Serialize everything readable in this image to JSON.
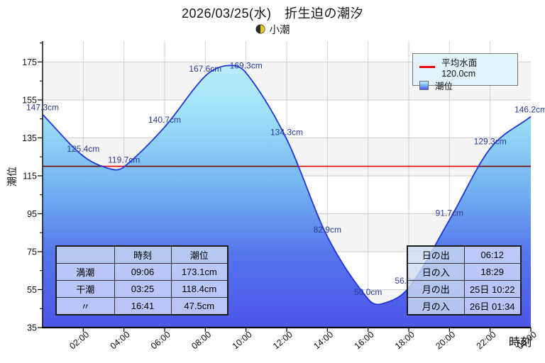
{
  "title": "2026/03/25(水)　折生迫の潮汐",
  "moon_phase": "小潮",
  "legend": {
    "mean_label": "平均水面 120.0cm",
    "series_label": "潮位"
  },
  "axes": {
    "y_label": "潮位",
    "x_label": "時刻"
  },
  "tide_table": {
    "headers": [
      "",
      "時刻",
      "潮位"
    ],
    "rows": [
      [
        "満潮",
        "09:06",
        "173.1cm"
      ],
      [
        "干潮",
        "03:25",
        "118.4cm"
      ],
      [
        "〃",
        "16:41",
        "47.5cm"
      ]
    ]
  },
  "sun_moon_table": {
    "rows": [
      [
        "日の出",
        "06:12"
      ],
      [
        "日の入",
        "18:29"
      ],
      [
        "月の出",
        "25日 10:22"
      ],
      [
        "月の入",
        "26日 01:34"
      ]
    ]
  },
  "chart_data": {
    "type": "area",
    "title": "折生迫の潮汐 2026/03/25",
    "xlabel": "時刻",
    "ylabel": "潮位",
    "ylim": [
      35,
      186
    ],
    "y_major_ticks": [
      35,
      55,
      75,
      95,
      115,
      135,
      155,
      175
    ],
    "y_minor_ticks": [
      45,
      65,
      85,
      105,
      125,
      145,
      165,
      185
    ],
    "x_ticks": [
      {
        "hour": 2,
        "label": "02:00"
      },
      {
        "hour": 4,
        "label": "04:00"
      },
      {
        "hour": 6,
        "label": "06:00"
      },
      {
        "hour": 8,
        "label": "08:00"
      },
      {
        "hour": 10,
        "label": "10:00"
      },
      {
        "hour": 12,
        "label": "12:00"
      },
      {
        "hour": 14,
        "label": "14:00"
      },
      {
        "hour": 16,
        "label": "16:00"
      },
      {
        "hour": 18,
        "label": "18:00"
      },
      {
        "hour": 20,
        "label": "20:00"
      },
      {
        "hour": 22,
        "label": "22:00"
      },
      {
        "hour": 24,
        "label": "00:00"
      }
    ],
    "mean_water_cm": 120.0,
    "series": [
      {
        "name": "潮位",
        "points": [
          {
            "hour": 0.0,
            "cm": 147.3,
            "label": "147.3cm"
          },
          {
            "hour": 2.0,
            "cm": 125.4,
            "label": "125.4cm"
          },
          {
            "hour": 3.417,
            "cm": 118.4
          },
          {
            "hour": 4.0,
            "cm": 119.7,
            "label": "119.7cm"
          },
          {
            "hour": 6.0,
            "cm": 140.7,
            "label": "140.7cm"
          },
          {
            "hour": 8.0,
            "cm": 167.6,
            "label": "167.6cm"
          },
          {
            "hour": 9.1,
            "cm": 173.1
          },
          {
            "hour": 10.0,
            "cm": 169.3,
            "label": "169.3cm"
          },
          {
            "hour": 12.0,
            "cm": 134.3,
            "label": "134.3cm"
          },
          {
            "hour": 14.0,
            "cm": 82.9,
            "label": "82.9cm"
          },
          {
            "hour": 16.0,
            "cm": 50.0,
            "label": "50.0cm"
          },
          {
            "hour": 16.683,
            "cm": 47.5
          },
          {
            "hour": 18.0,
            "cm": 56.0,
            "label": "56.0cm"
          },
          {
            "hour": 20.0,
            "cm": 91.7,
            "label": "91.7cm"
          },
          {
            "hour": 22.0,
            "cm": 129.3,
            "label": "129.3cm"
          },
          {
            "hour": 24.0,
            "cm": 146.2,
            "label": "146.2cm"
          }
        ]
      }
    ]
  },
  "colors": {
    "mean_line": "#ee0000",
    "curve_line": "#1f35dd",
    "fill_stops": [
      [
        "0%",
        "#c8f4fd"
      ],
      [
        "25%",
        "#9fe1f8"
      ],
      [
        "50%",
        "#74b6f0"
      ],
      [
        "75%",
        "#5574ec"
      ],
      [
        "100%",
        "#4c55e9"
      ]
    ],
    "value_label_text": "#2a3a96",
    "grid": "#cfcfcf",
    "stripe": "#f5f5f6",
    "axis": "#000000",
    "moon_dark": "#2b2b2b",
    "moon_light": "#e8c41e"
  }
}
